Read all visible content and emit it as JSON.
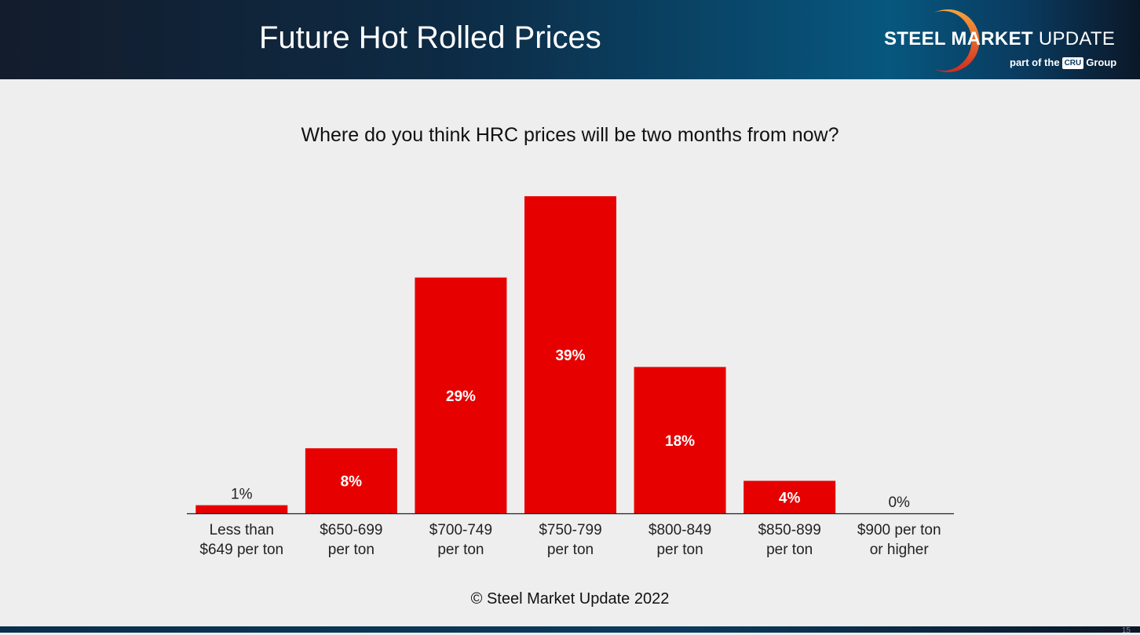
{
  "header": {
    "title": "Future Hot Rolled Prices",
    "logo": {
      "brand_bold": "STEEL MARKET",
      "brand_light": "UPDATE",
      "sub_prefix": "part of the",
      "sub_mark": "CRU",
      "sub_suffix": "Group"
    }
  },
  "footer": {
    "copyright": "© Steel Market Update 2022",
    "page_number": "15"
  },
  "chart_data": {
    "type": "bar",
    "title": "Where do you think HRC prices will be two months from now?",
    "categories": [
      [
        "Less than",
        "$649 per ton"
      ],
      [
        "$650-699",
        "per ton"
      ],
      [
        "$700-749",
        "per ton"
      ],
      [
        "$750-799",
        "per ton"
      ],
      [
        "$800-849",
        "per ton"
      ],
      [
        "$850-899",
        "per ton"
      ],
      [
        "$900 per ton",
        "or higher"
      ]
    ],
    "values": [
      1,
      8,
      29,
      39,
      18,
      4,
      0
    ],
    "labels": [
      "1%",
      "8%",
      "29%",
      "39%",
      "18%",
      "4%",
      "0%"
    ],
    "unit": "%",
    "ylim": [
      0,
      39
    ],
    "grid": false,
    "bar_color": "#e60000"
  }
}
